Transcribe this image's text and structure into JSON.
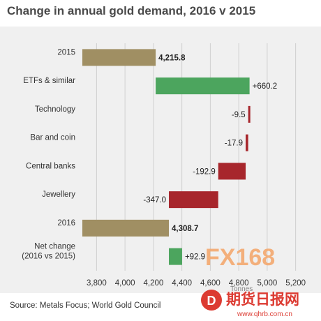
{
  "title": "Change in annual gold demand, 2016 v 2015",
  "source": "Source: Metals Focus; World Gold Council",
  "units_label": "Tonnes",
  "watermark": {
    "fx_text": "FX168",
    "cn_text": "期货日报网",
    "url_text": "www.qhrb.com.cn"
  },
  "colors": {
    "total": "#a08f63",
    "increase": "#4ca55e",
    "decrease": "#a7262c"
  },
  "chart_data": {
    "type": "bar",
    "subtype": "waterfall-horizontal",
    "title": "Change in annual gold demand, 2016 v 2015",
    "xlabel": "Tonnes",
    "xlim": [
      3700,
      5300
    ],
    "xticks": [
      3800,
      4000,
      4200,
      4400,
      4600,
      4800,
      5000,
      5200
    ],
    "xtick_labels": [
      "3,800",
      "4,000",
      "4,200",
      "4,400",
      "4,600",
      "4,800",
      "5,000",
      "5,200"
    ],
    "grid": true,
    "categories": [
      "2015",
      "ETFs & similar",
      "Technology",
      "Bar and coin",
      "Central banks",
      "Jewellery",
      "2016",
      "Net change|(2016 vs 2015)"
    ],
    "bars": [
      {
        "category": "2015",
        "kind": "total",
        "start": 3700,
        "end": 4215.8,
        "label": "4,215.8"
      },
      {
        "category": "ETFs & similar",
        "kind": "increase",
        "start": 4215.8,
        "end": 4876.0,
        "label": "+660.2"
      },
      {
        "category": "Technology",
        "kind": "decrease",
        "start": 4876.0,
        "end": 4866.5,
        "label": "-9.5"
      },
      {
        "category": "Bar and coin",
        "kind": "decrease",
        "start": 4866.5,
        "end": 4848.6,
        "label": "-17.9"
      },
      {
        "category": "Central banks",
        "kind": "decrease",
        "start": 4848.6,
        "end": 4655.7,
        "label": "-192.9"
      },
      {
        "category": "Jewellery",
        "kind": "decrease",
        "start": 4655.7,
        "end": 4308.7,
        "label": "-347.0"
      },
      {
        "category": "2016",
        "kind": "total",
        "start": 3700,
        "end": 4308.7,
        "label": "4,308.7"
      },
      {
        "category": "Net change (2016 vs 2015)",
        "kind": "increase",
        "start": 4308.7,
        "end": 4401.6,
        "label": "+92.9"
      }
    ]
  }
}
